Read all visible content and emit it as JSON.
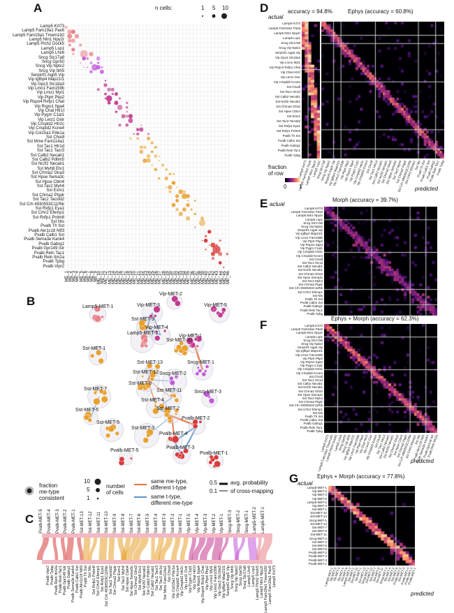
{
  "panels": {
    "A": "A",
    "B": "B",
    "C": "C",
    "D": "D",
    "E": "E",
    "F": "F",
    "G": "G"
  },
  "panelA": {
    "legend_title": "n cells:",
    "legend_sizes": [
      "1",
      "5",
      "10"
    ],
    "row_labels": [
      "Lamp5 Krt73",
      "Lamp5 Fam19a1 Pax6",
      "Lamp5 Fam19a1 Tmem182",
      "Lamp5 Ntn1 Npy2r",
      "Lamp5 Plch2 Dock5",
      "Lamp5 Lsp1",
      "Lamp5 Lhx6",
      "Sncg Slc17a8",
      "Sncg Gpr50",
      "Sncg Vip Nptx2",
      "Sncg Vip Itih5",
      "Serpinf1 Aqp5 Vip",
      "Vip Igfbp4 Map21l1",
      "Vip Gpc3 Slc18a3",
      "Vip Lmo1 Fam159b",
      "Vip Lmo1 Myl1",
      "Vip Ptprt Pkp2",
      "Vip Rspo4 Rxfp1 Chat",
      "Vip Rspo1 Itga4",
      "Vip Chat Htr1f",
      "Vip Pygm C1ql1",
      "Vip Lect1 Oxtr",
      "Vip Crispld2 Htr2c",
      "Vip Crispld2 Kcne4",
      "Vip Col15a1 Pde1a",
      "Sst Chodl",
      "Sst Mme Fam114a1",
      "Sst Tac1 Htr1d",
      "Sst Tac1 Tacr3",
      "Sst Calb2 Necab1",
      "Sst Calb2 Pdlim5",
      "Sst Nr2f2 Necab1",
      "Sst Myh8 Etv1",
      "Sst Chrna2 Glra3",
      "Sst Hpse Sema3c",
      "Sst Hpse Cbln4",
      "Sst Tac2 Myh4",
      "Sst Esm1",
      "Sst Chrna2 Ptgdr",
      "Sst Tac2 Tacstd2",
      "Sst Crh 4930553C11Rik",
      "Sst Rxfp1 Eya1",
      "Sst Crhr2 Efemp1",
      "Sst Rxfp1 Prdm8",
      "Sst Nts",
      "Pvalb Th Sst",
      "Pvalb Akr1c18 Ntf3",
      "Pvalb Calb1 Sst",
      "Pvalb Sema3e Kank4",
      "Pvalb Gabrg1",
      "Pvalb Gpr149 Islr",
      "Pvalb Reln Tac1",
      "Pvalb Reln Itm2a",
      "Pvalb Tpbg",
      "Pvalb Vipr2"
    ],
    "col_labels": [
      "ME_1",
      "ME_2",
      "ME_3",
      "ME_4",
      "ME_5",
      "ME_6",
      "ME_7",
      "ME_8",
      "ME_9",
      "ME_10",
      "ME_11",
      "ME_12",
      "ME_13",
      "ME_14",
      "ME_15",
      "ME_16",
      "ME_17",
      "ME_18",
      "ME_19",
      "ME_20",
      "ME_21",
      "ME_22",
      "ME_23",
      "ME_24",
      "ME_25",
      "ME_26",
      "ME_27",
      "ME_28",
      "ME_29",
      "ME_30",
      "ME_31",
      "ME_32",
      "ME_33",
      "ME_34",
      "ME_35",
      "ME_36",
      "ME_37",
      "ME_38",
      "ME_39",
      "ME_40",
      "ME_41",
      "ME_42",
      "ME_43",
      "ME_44",
      "ME_45",
      "ME_46"
    ]
  },
  "panelB": {
    "nodes": [
      "Lamp5-MET-1",
      "Vip-MET-2",
      "Vip-MET-3",
      "Vip-MET-5",
      "Sst-MET-9",
      "Lamp5-MET-2",
      "Vip-MET-4",
      "Sst-MET-1",
      "Sst-MET-10",
      "Vip-MET-1",
      "Sst-MET-13",
      "Sncg-MET-1",
      "Sst-MET-12",
      "Sncg-MET-2",
      "Sst-MET-7",
      "Sst-MET-8",
      "Sst-MET-11",
      "Sncg-MET-3",
      "Sst-MET-4",
      "Sst-MET-2",
      "Sst-MET-6",
      "Sst-MET-5",
      "Pvalb-MET-2",
      "Sst-MET-3",
      "Pvalb-MET-4",
      "Pvalb-MET-3",
      "Pvalb-MET-1",
      "Pvalb-MET-5"
    ],
    "legend": {
      "fraction": "fraction",
      "me_type": "me-type",
      "consistent": "consistent",
      "n_values": [
        "10",
        "5",
        "1"
      ],
      "number_of": "number",
      "of_cells": "of cells",
      "same_me": "same me-type,",
      "diff_t": "different t-type",
      "same_t": "same t-type,",
      "diff_me": "different me-type",
      "prob_05": "0.5",
      "prob_01": "0.1",
      "avg_prob": "avg. probability",
      "of_cross": "of cross-mapping"
    }
  },
  "panelC": {
    "top_labels": [
      "Pvalb-MET-5",
      "Pvalb-MET-4",
      "Pvalb-MET-3",
      "Pvalb-MET-2",
      "Pvalb-MET-1",
      "Sst-MET-13",
      "Sst-MET-12",
      "Sst-MET-11",
      "Sst-MET-10",
      "Sst-MET-9",
      "Sst-MET-8",
      "Sst-MET-7",
      "Sst-MET-6",
      "Sst-MET-5",
      "Sst-MET-4",
      "Sst-MET-3",
      "Sst-MET-2",
      "Sst-MET-1",
      "Vip-MET-5",
      "Vip-MET-4",
      "Vip-MET-3",
      "Vip-MET-2",
      "Vip-MET-1",
      "Sncg-MET-3",
      "Sncg-MET-2",
      "Sncg-MET-1",
      "Lamp5-MET-2",
      "Lamp5-MET-1"
    ],
    "bottom_labels": [
      "Pvalb Vipr2",
      "Pvalb Tpbg",
      "Pvalb Reln Itm2a",
      "Pvalb Reln Tac1",
      "Pvalb Gpr149 Islr",
      "Pvalb Gabrg1",
      "Pvalb Sema3e Kank4",
      "Pvalb Calb1 Sst",
      "Pvalb Akr1c18 Ntf3",
      "Pvalb Th Sst",
      "Sst Nts",
      "Sst Rxfp1 Prdm8",
      "Sst Crhr2 Efemp1",
      "Sst Rxfp1 Eya1",
      "Sst Crh 4930553C11Rik",
      "Sst Tac2 Tacstd2",
      "Sst Chrna2 Ptgdr",
      "Sst Esm1",
      "Sst Tac2 Myh4",
      "Sst Hpse Cbln4",
      "Sst Hpse Sema3c",
      "Sst Chrna2 Glra3",
      "Sst Myh8 Etv1",
      "Sst Nr2f2 Necab1",
      "Sst Calb2 Pdlim5",
      "Sst Calb2 Necab1",
      "Sst Tac1 Tacr3",
      "Sst Tac1 Htr1d",
      "Sst Mme Fam114a1",
      "Sst Chodl",
      "Vip Col15a1 Pde1a",
      "Vip Crispld2 Kcne4",
      "Vip Crispld2 Htr2c",
      "Vip Lect1 Oxtr",
      "Vip Pygm C1ql1",
      "Vip Chat Htr1f",
      "Vip Rspo1 Itga4",
      "Vip Rspo4 Rxfp1 Chat",
      "Vip Ptprt Pkp2",
      "Vip Lmo1 Myl1",
      "Vip Lmo1 Fam159b",
      "Vip Gpc3 Slc18a3",
      "Vip Igfbp4 Map21l1",
      "Serpinf1 Aqp5 Vip",
      "Sncg Vip Itih5",
      "Sncg Vip Nptx2",
      "Sncg Gpr50",
      "Sncg Slc17a8",
      "Lamp5 Lhx6",
      "Lamp5 Lsp1",
      "Lamp5 Plch2 Dock5",
      "Lamp5 Ntn1 Npy2r",
      "Lamp5 Fam19a1 Tmem182",
      "Lamp5 Fam19a1 Pax6",
      "Lamp5 Krt73"
    ]
  },
  "panelD": {
    "actual": "actual",
    "accuracy1": "accuracy = 94.8%",
    "title2": "Ephys (accuracy = 60.8%)",
    "fraction": "fraction",
    "of_row": "of row",
    "zero": "0",
    "one": "1",
    "predicted": "predicted"
  },
  "panelE": {
    "actual": "actual",
    "title": "Morph (accuracy = 39.7%)"
  },
  "panelF": {
    "title": "Ephys + Morph (accuracy = 62.3%)",
    "predicted": "predicted"
  },
  "panelG": {
    "actual": "actual",
    "title": "Ephys + Morph (accuracy = 77.8%)",
    "predicted": "predicted"
  },
  "colors": {
    "lamp5": "#e8828a",
    "sncg": "#c258d8",
    "vip": "#c23b8f",
    "sst": "#e8a12e",
    "pvalb": "#d93a3a",
    "heat_low": "#000004",
    "heat_mid": "#b53679",
    "heat_high": "#fcfdbf"
  }
}
